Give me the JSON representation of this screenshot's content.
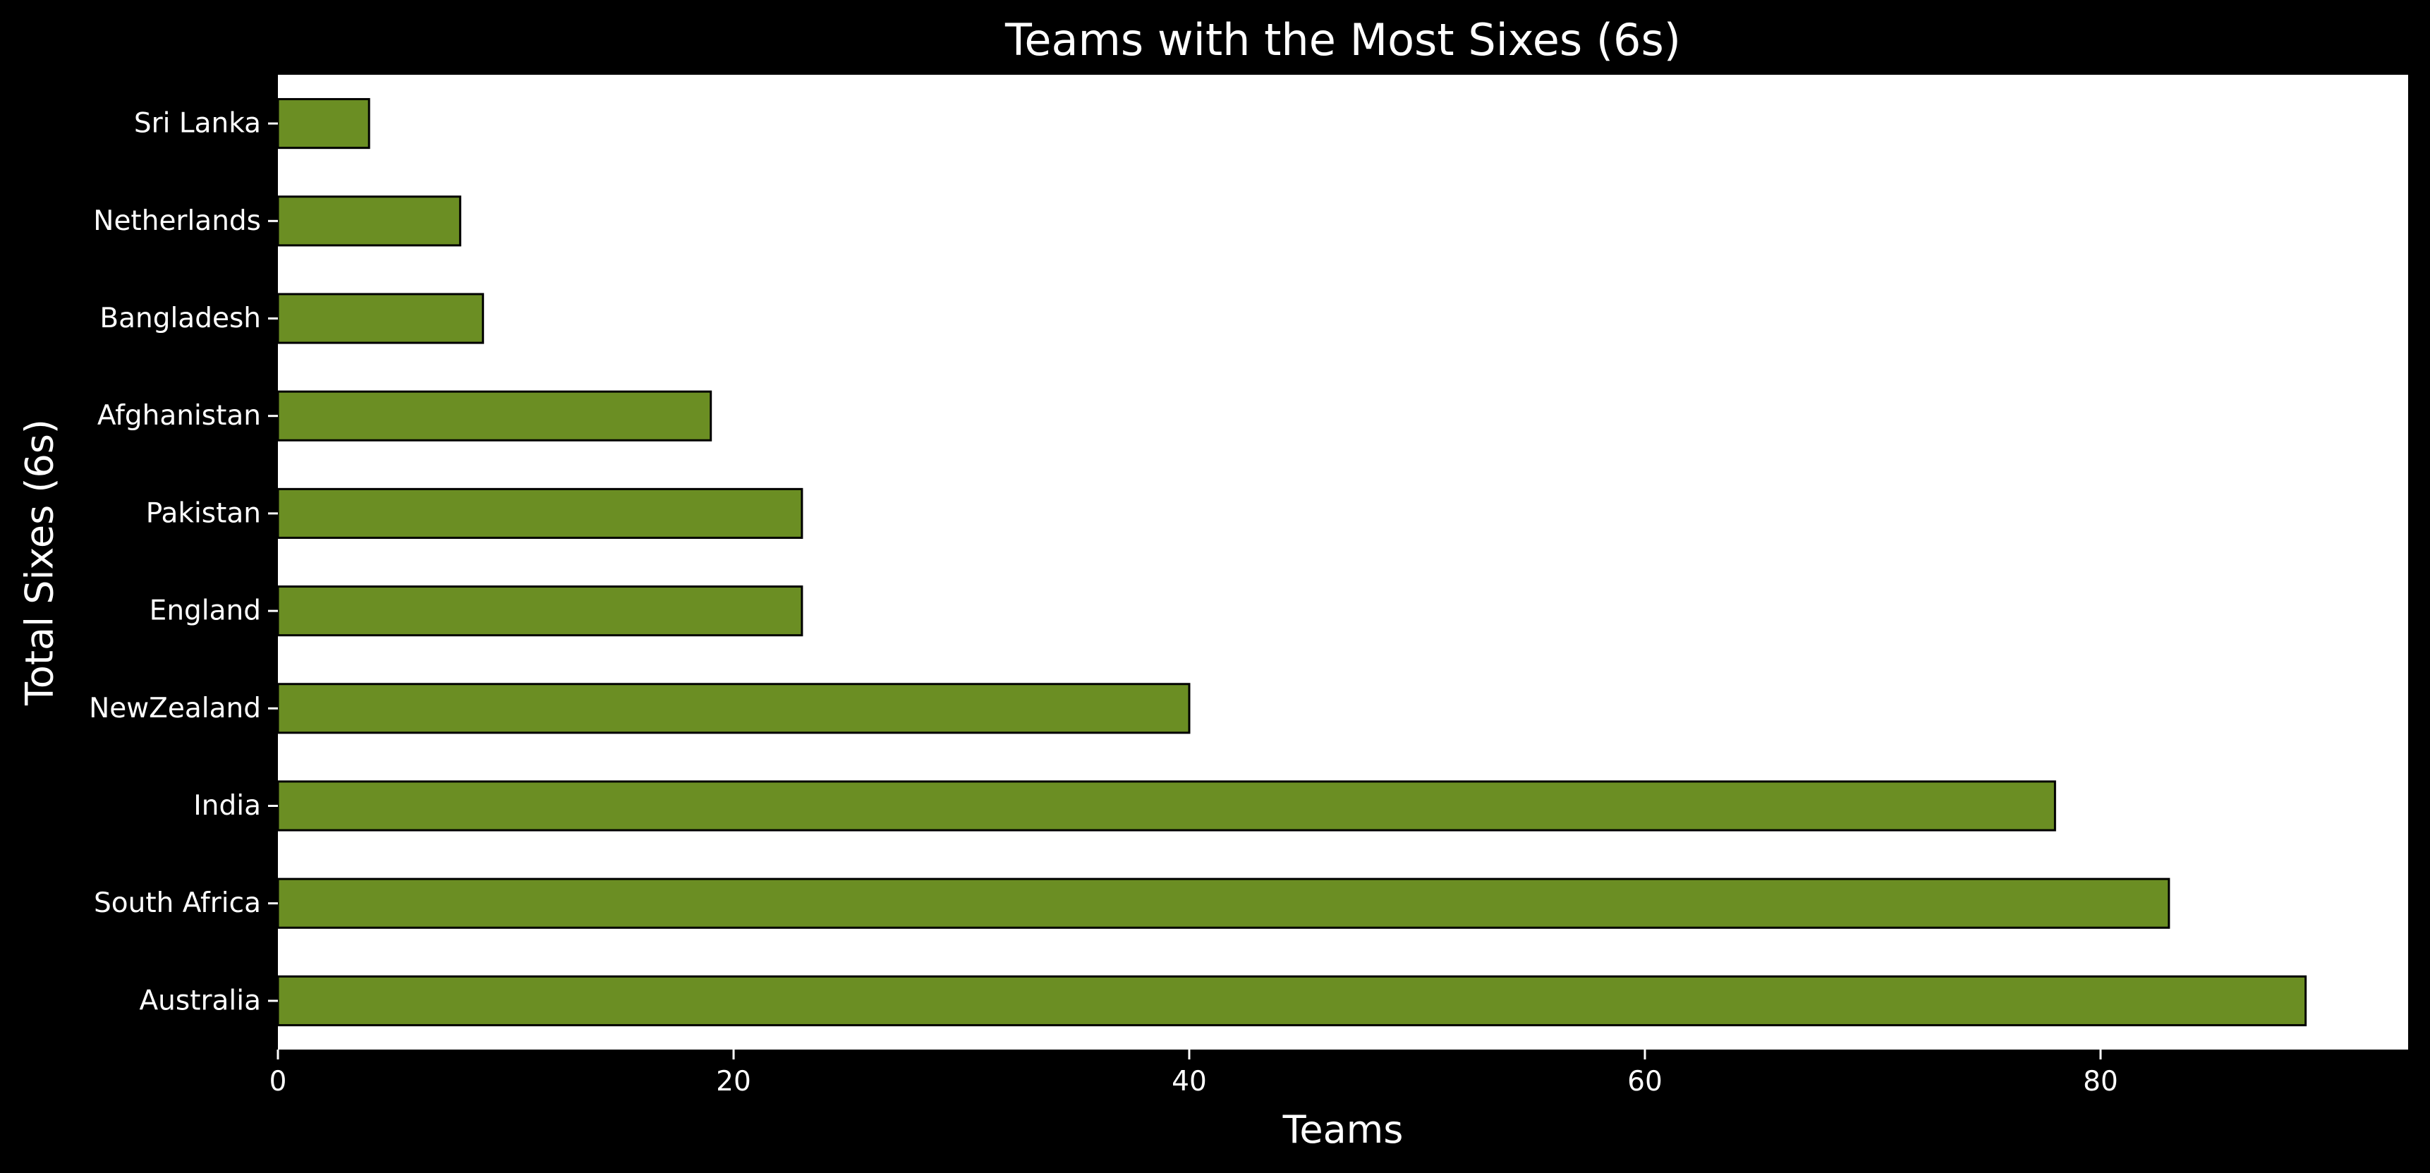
{
  "chart_data": {
    "type": "bar",
    "orientation": "horizontal",
    "title": "Teams with the Most Sixes (6s)",
    "xlabel": "Teams",
    "ylabel": "Total Sixes (6s)",
    "categories": [
      "Sri Lanka",
      "Netherlands",
      "Bangladesh",
      "Afghanistan",
      "Pakistan",
      "England",
      "NewZealand",
      "India",
      "South Africa",
      "Australia"
    ],
    "values": [
      4,
      8,
      9,
      19,
      23,
      23,
      40,
      78,
      83,
      89
    ],
    "xlim": [
      0,
      93.5
    ],
    "xticks": [
      0,
      20,
      40,
      60,
      80
    ],
    "grid": false,
    "colors": {
      "figure_background": "#000000",
      "plot_background": "#ffffff",
      "bar_fill": "#6b8e23",
      "bar_edge": "#000000",
      "text": "#ffffff",
      "tick": "#ffffff"
    }
  }
}
